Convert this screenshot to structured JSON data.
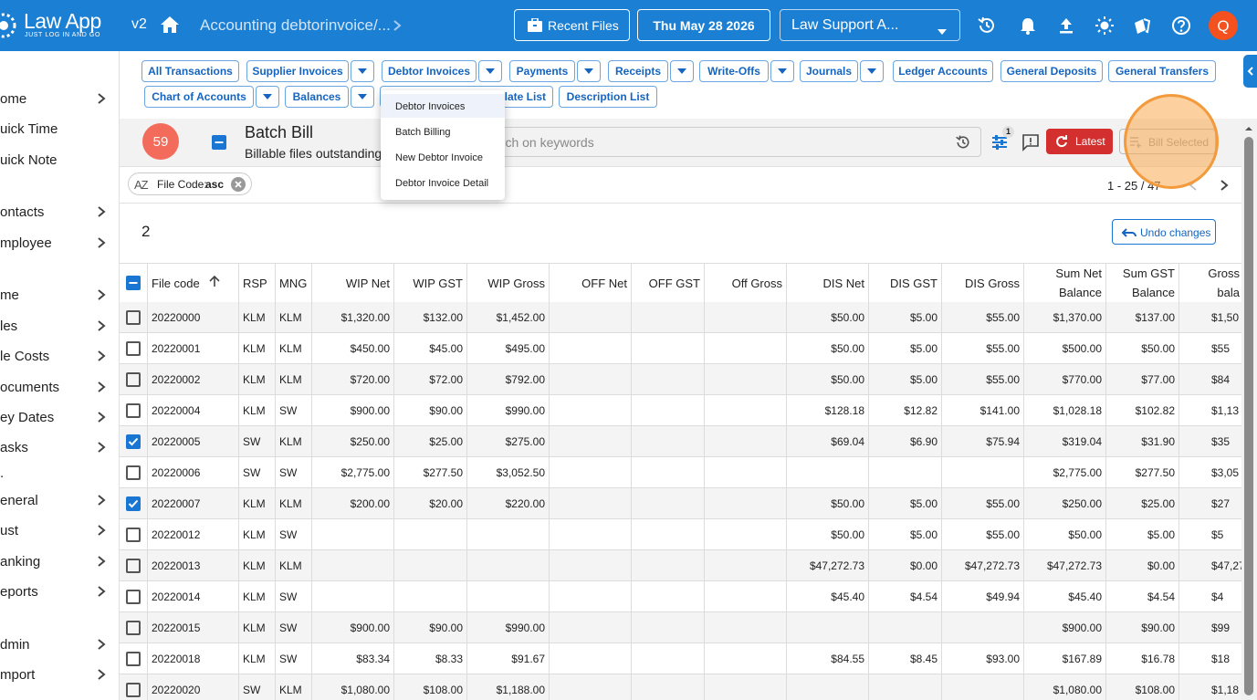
{
  "header": {
    "logo": "Law App",
    "tagline": "JUST LOG IN AND GO",
    "version": "v2",
    "breadcrumb": "Accounting debtorinvoice/...",
    "recent_files": "Recent Files",
    "date": "Thu May 28 2026",
    "firm": "Law Support A...",
    "avatar": "Q"
  },
  "sidebar": {
    "items": [
      {
        "label": "ome",
        "expandable": true
      },
      {
        "label": "uick Time",
        "expandable": false
      },
      {
        "label": "uick Note",
        "expandable": false
      },
      {
        "label": "ontacts",
        "expandable": true
      },
      {
        "label": "mployee",
        "expandable": true
      },
      {
        "label": "me",
        "expandable": true
      },
      {
        "label": "les",
        "expandable": true
      },
      {
        "label": "le Costs",
        "expandable": true
      },
      {
        "label": "ocuments",
        "expandable": true
      },
      {
        "label": "ey Dates",
        "expandable": true
      },
      {
        "label": "asks",
        "expandable": true
      },
      {
        "label": ".",
        "expandable": false
      },
      {
        "label": "eneral",
        "expandable": true
      },
      {
        "label": "ust",
        "expandable": true
      },
      {
        "label": "anking",
        "expandable": true
      },
      {
        "label": "eports",
        "expandable": true
      },
      {
        "label": "dmin",
        "expandable": true
      },
      {
        "label": "mport",
        "expandable": true
      }
    ]
  },
  "tabs": {
    "rows": [
      [
        {
          "label": "All Transactions",
          "dropdown": false
        },
        {
          "label": "Supplier Invoices",
          "dropdown": true
        },
        {
          "label": "Debtor Invoices",
          "dropdown": true
        },
        {
          "label": "Payments",
          "dropdown": true
        },
        {
          "label": "Receipts",
          "dropdown": true
        },
        {
          "label": "Write-Offs",
          "dropdown": true
        },
        {
          "label": "Journals",
          "dropdown": true
        },
        {
          "label": "Ledger Accounts",
          "dropdown": false
        },
        {
          "label": "General Deposits",
          "dropdown": false
        },
        {
          "label": "General Transfers",
          "dropdown": false
        }
      ],
      [
        {
          "label": "Chart of Accounts",
          "dropdown": true
        },
        {
          "label": "Balances",
          "dropdown": true
        },
        {
          "label": "plate List",
          "dropdown": false
        },
        {
          "label": "Description List",
          "dropdown": false
        }
      ]
    ]
  },
  "dropdown_menu": {
    "items": [
      "Debtor Invoices",
      "Batch Billing",
      "New Debtor Invoice",
      "Debtor Invoice Detail"
    ]
  },
  "panel": {
    "count_badge": "59",
    "title": "Batch Bill",
    "subtitle": "Billable files outstanding",
    "search_placeholder": "arch on keywords",
    "filter_badge": "1",
    "latest": "Latest",
    "bill_selected": "Bill Selected",
    "sort_chip": {
      "icon": "AZ",
      "field": "File Code:",
      "dir": "asc"
    },
    "pagination": "1 - 25 / 47",
    "selected_count": "2",
    "undo": "Undo changes"
  },
  "table": {
    "columns": [
      "File code",
      "RSP",
      "MNG",
      "WIP Net",
      "WIP GST",
      "WIP Gross",
      "OFF Net",
      "OFF GST",
      "Off Gross",
      "DIS Net",
      "DIS GST",
      "DIS Gross",
      "Sum Net Balance",
      "Sum GST Balance",
      "Gross bala"
    ],
    "rows": [
      {
        "selected": false,
        "cells": [
          "20220000",
          "KLM",
          "KLM",
          "$1,320.00",
          "$132.00",
          "$1,452.00",
          null,
          null,
          null,
          "$50.00",
          "$5.00",
          "$55.00",
          "$1,370.00",
          "$137.00",
          "$1,50"
        ]
      },
      {
        "selected": false,
        "cells": [
          "20220001",
          "KLM",
          "KLM",
          "$450.00",
          "$45.00",
          "$495.00",
          null,
          null,
          null,
          "$50.00",
          "$5.00",
          "$55.00",
          "$500.00",
          "$50.00",
          "$55"
        ]
      },
      {
        "selected": false,
        "cells": [
          "20220002",
          "KLM",
          "KLM",
          "$720.00",
          "$72.00",
          "$792.00",
          null,
          null,
          null,
          "$50.00",
          "$5.00",
          "$55.00",
          "$770.00",
          "$77.00",
          "$84"
        ]
      },
      {
        "selected": false,
        "cells": [
          "20220004",
          "KLM",
          "SW",
          "$900.00",
          "$90.00",
          "$990.00",
          null,
          null,
          null,
          "$128.18",
          "$12.82",
          "$141.00",
          "$1,028.18",
          "$102.82",
          "$1,13"
        ]
      },
      {
        "selected": true,
        "cells": [
          "20220005",
          "SW",
          "KLM",
          "$250.00",
          "$25.00",
          "$275.00",
          null,
          null,
          null,
          "$69.04",
          "$6.90",
          "$75.94",
          "$319.04",
          "$31.90",
          "$35"
        ]
      },
      {
        "selected": false,
        "cells": [
          "20220006",
          "SW",
          "SW",
          "$2,775.00",
          "$277.50",
          "$3,052.50",
          null,
          null,
          null,
          null,
          null,
          null,
          "$2,775.00",
          "$277.50",
          "$3,05"
        ]
      },
      {
        "selected": true,
        "cells": [
          "20220007",
          "KLM",
          "KLM",
          "$200.00",
          "$20.00",
          "$220.00",
          null,
          null,
          null,
          "$50.00",
          "$5.00",
          "$55.00",
          "$250.00",
          "$25.00",
          "$27"
        ]
      },
      {
        "selected": false,
        "cells": [
          "20220012",
          "KLM",
          "SW",
          null,
          null,
          null,
          null,
          null,
          null,
          "$50.00",
          "$5.00",
          "$55.00",
          "$50.00",
          "$5.00",
          "$5"
        ]
      },
      {
        "selected": false,
        "cells": [
          "20220013",
          "KLM",
          "KLM",
          null,
          null,
          null,
          null,
          null,
          null,
          "$47,272.73",
          "$0.00",
          "$47,272.73",
          "$47,272.73",
          "$0.00",
          "$47,27"
        ]
      },
      {
        "selected": false,
        "cells": [
          "20220014",
          "KLM",
          "SW",
          null,
          null,
          null,
          null,
          null,
          null,
          "$45.40",
          "$4.54",
          "$49.94",
          "$45.40",
          "$4.54",
          "$4"
        ]
      },
      {
        "selected": false,
        "cells": [
          "20220015",
          "KLM",
          "SW",
          "$900.00",
          "$90.00",
          "$990.00",
          null,
          null,
          null,
          null,
          null,
          null,
          "$900.00",
          "$90.00",
          "$99"
        ]
      },
      {
        "selected": false,
        "cells": [
          "20220018",
          "KLM",
          "SW",
          "$83.34",
          "$8.33",
          "$91.67",
          null,
          null,
          null,
          "$84.55",
          "$8.45",
          "$93.00",
          "$167.89",
          "$16.78",
          "$18"
        ]
      },
      {
        "selected": false,
        "cells": [
          "20220020",
          "SW",
          "KLM",
          "$1,080.00",
          "$108.00",
          "$1,188.00",
          null,
          null,
          null,
          null,
          null,
          null,
          "$1,080.00",
          "$108.00",
          "$1,18"
        ]
      }
    ]
  }
}
